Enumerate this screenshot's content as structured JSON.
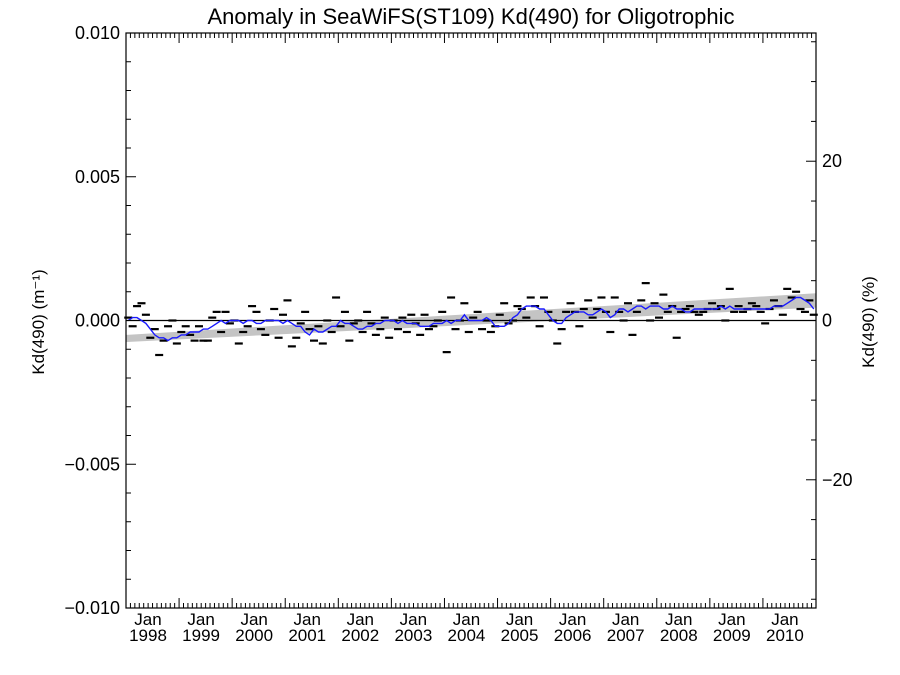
{
  "chart_data": {
    "type": "line",
    "title": "Anomaly in SeaWiFS(ST109) Kd(490) for Oligotrophic",
    "ylabel_left": "Kd(490) (m⁻¹)",
    "ylabel_right": "Kd(490) (%)",
    "xlabel": "",
    "x_range": [
      1998.0,
      2011.0
    ],
    "ylim_left": [
      -0.01,
      0.01
    ],
    "ylim_right": [
      -36.1,
      36.1
    ],
    "yticks_left": [
      "0.010",
      "0.005",
      "0.000",
      "−0.005",
      "−0.010"
    ],
    "yticks_left_values": [
      0.01,
      0.005,
      0.0,
      -0.005,
      -0.01
    ],
    "yticks_right": [
      "20",
      "0",
      "−20"
    ],
    "yticks_right_values": [
      20,
      0,
      -20
    ],
    "xticks": [
      {
        "month": "Jan",
        "year": "1998",
        "x": 1998.0
      },
      {
        "month": "Jan",
        "year": "1999",
        "x": 1999.0
      },
      {
        "month": "Jan",
        "year": "2000",
        "x": 2000.0
      },
      {
        "month": "Jan",
        "year": "2001",
        "x": 2001.0
      },
      {
        "month": "Jan",
        "year": "2002",
        "x": 2002.0
      },
      {
        "month": "Jan",
        "year": "2003",
        "x": 2003.0
      },
      {
        "month": "Jan",
        "year": "2004",
        "x": 2004.0
      },
      {
        "month": "Jan",
        "year": "2005",
        "x": 2005.0
      },
      {
        "month": "Jan",
        "year": "2006",
        "x": 2006.0
      },
      {
        "month": "Jan",
        "year": "2007",
        "x": 2007.0
      },
      {
        "month": "Jan",
        "year": "2008",
        "x": 2008.0
      },
      {
        "month": "Jan",
        "year": "2009",
        "x": 2009.0
      },
      {
        "month": "Jan",
        "year": "2010",
        "x": 2010.0
      }
    ],
    "zero_line": 0.0,
    "trend_band": {
      "x": [
        1998.0,
        2011.0
      ],
      "upper": [
        -0.0005,
        0.00095
      ],
      "lower": [
        -0.00075,
        0.00045
      ]
    },
    "series": [
      {
        "kind": "monthly_anomaly_dashes",
        "color": "#000000",
        "x": [
          1998.042,
          1998.125,
          1998.208,
          1998.292,
          1998.375,
          1998.458,
          1998.542,
          1998.625,
          1998.708,
          1998.792,
          1998.875,
          1998.958,
          1999.042,
          1999.125,
          1999.208,
          1999.292,
          1999.375,
          1999.458,
          1999.542,
          1999.625,
          1999.708,
          1999.792,
          1999.875,
          1999.958,
          2000.042,
          2000.125,
          2000.208,
          2000.292,
          2000.375,
          2000.458,
          2000.542,
          2000.625,
          2000.708,
          2000.792,
          2000.875,
          2000.958,
          2001.042,
          2001.125,
          2001.208,
          2001.292,
          2001.375,
          2001.458,
          2001.542,
          2001.625,
          2001.708,
          2001.792,
          2001.875,
          2001.958,
          2002.042,
          2002.125,
          2002.208,
          2002.292,
          2002.375,
          2002.458,
          2002.542,
          2002.625,
          2002.708,
          2002.792,
          2002.875,
          2002.958,
          2003.042,
          2003.125,
          2003.208,
          2003.292,
          2003.375,
          2003.458,
          2003.542,
          2003.625,
          2003.708,
          2003.792,
          2003.875,
          2003.958,
          2004.042,
          2004.125,
          2004.208,
          2004.292,
          2004.375,
          2004.458,
          2004.542,
          2004.625,
          2004.708,
          2004.792,
          2004.875,
          2004.958,
          2005.042,
          2005.125,
          2005.208,
          2005.292,
          2005.375,
          2005.458,
          2005.542,
          2005.625,
          2005.708,
          2005.792,
          2005.875,
          2005.958,
          2006.042,
          2006.125,
          2006.208,
          2006.292,
          2006.375,
          2006.458,
          2006.542,
          2006.625,
          2006.708,
          2006.792,
          2006.875,
          2006.958,
          2007.042,
          2007.125,
          2007.208,
          2007.292,
          2007.375,
          2007.458,
          2007.542,
          2007.625,
          2007.708,
          2007.792,
          2007.875,
          2007.958,
          2008.042,
          2008.125,
          2008.208,
          2008.292,
          2008.375,
          2008.458,
          2008.542,
          2008.625,
          2008.708,
          2008.792,
          2008.875,
          2008.958,
          2009.042,
          2009.125,
          2009.208,
          2009.292,
          2009.375,
          2009.458,
          2009.542,
          2009.625,
          2009.708,
          2009.792,
          2009.875,
          2009.958,
          2010.042,
          2010.125,
          2010.208,
          2010.292,
          2010.375,
          2010.458,
          2010.542,
          2010.625,
          2010.708,
          2010.792,
          2010.875,
          2010.958
        ],
        "y": [
          0.0001,
          -0.0002,
          0.0005,
          0.0006,
          0.0002,
          -0.0006,
          -0.0003,
          -0.0012,
          -0.0007,
          -0.0002,
          0.0,
          -0.0008,
          -0.0004,
          -0.0002,
          -0.0005,
          -0.0007,
          -0.0002,
          -0.0007,
          -0.0007,
          0.0001,
          0.0003,
          -0.0004,
          0.0003,
          -0.0001,
          0.0,
          -0.0008,
          -0.0004,
          -0.0002,
          0.0005,
          0.0003,
          -0.0003,
          -0.0005,
          0.0,
          0.0004,
          -0.0006,
          0.0002,
          0.0007,
          -0.0009,
          -0.0006,
          -0.0001,
          0.0003,
          -0.0003,
          -0.0007,
          -0.0002,
          -0.0008,
          0.0,
          -0.0004,
          0.0008,
          -0.0002,
          0.0003,
          -0.0007,
          -0.0001,
          0.0,
          -0.0004,
          0.0003,
          -0.0001,
          -0.0005,
          -0.0003,
          0.0001,
          -0.0006,
          0.0,
          -0.0003,
          0.0001,
          -0.0004,
          0.0002,
          -0.0001,
          -0.0005,
          0.0002,
          -0.0003,
          -0.0002,
          0.0,
          0.0003,
          -0.0011,
          0.0008,
          -0.0003,
          0.0,
          0.0006,
          -0.0004,
          0.0001,
          0.0003,
          -0.0003,
          0.0,
          -0.0004,
          -0.0002,
          0.0002,
          0.0006,
          -0.0001,
          0.0,
          0.0005,
          0.0004,
          0.0001,
          0.0008,
          0.0005,
          -0.0002,
          0.0008,
          0.0003,
          0.0,
          -0.0008,
          -0.0003,
          0.0003,
          0.0006,
          0.0003,
          -0.0002,
          0.0004,
          0.0007,
          0.0001,
          0.0004,
          0.0008,
          0.0003,
          -0.0004,
          0.0008,
          0.0003,
          0.0,
          0.0006,
          -0.0005,
          0.0003,
          0.0007,
          0.0013,
          0.0,
          0.0006,
          0.0001,
          0.0009,
          0.0003,
          0.0005,
          -0.0006,
          0.0003,
          0.0004,
          0.0005,
          0.0003,
          0.0002,
          0.0003,
          0.0004,
          0.0006,
          0.0004,
          0.0005,
          0.0,
          0.0011,
          0.0003,
          0.0005,
          0.0003,
          0.0004,
          0.0006,
          0.0005,
          0.0003,
          -0.0001,
          0.0004,
          0.0007,
          0.0005,
          0.0002,
          0.0011,
          0.0008,
          0.001,
          0.0004,
          0.0003,
          0.0007,
          0.0002
        ]
      },
      {
        "kind": "running_mean",
        "color": "#1a1aff",
        "x": [
          1998.042,
          1998.125,
          1998.208,
          1998.292,
          1998.375,
          1998.458,
          1998.542,
          1998.625,
          1998.708,
          1998.792,
          1998.875,
          1998.958,
          1999.042,
          1999.125,
          1999.208,
          1999.292,
          1999.375,
          1999.458,
          1999.542,
          1999.625,
          1999.708,
          1999.792,
          1999.875,
          1999.958,
          2000.042,
          2000.125,
          2000.208,
          2000.292,
          2000.375,
          2000.458,
          2000.542,
          2000.625,
          2000.708,
          2000.792,
          2000.875,
          2000.958,
          2001.042,
          2001.125,
          2001.208,
          2001.292,
          2001.375,
          2001.458,
          2001.542,
          2001.625,
          2001.708,
          2001.792,
          2001.875,
          2001.958,
          2002.042,
          2002.125,
          2002.208,
          2002.292,
          2002.375,
          2002.458,
          2002.542,
          2002.625,
          2002.708,
          2002.792,
          2002.875,
          2002.958,
          2003.042,
          2003.125,
          2003.208,
          2003.292,
          2003.375,
          2003.458,
          2003.542,
          2003.625,
          2003.708,
          2003.792,
          2003.875,
          2003.958,
          2004.042,
          2004.125,
          2004.208,
          2004.292,
          2004.375,
          2004.458,
          2004.542,
          2004.625,
          2004.708,
          2004.792,
          2004.875,
          2004.958,
          2005.042,
          2005.125,
          2005.208,
          2005.292,
          2005.375,
          2005.458,
          2005.542,
          2005.625,
          2005.708,
          2005.792,
          2005.875,
          2005.958,
          2006.042,
          2006.125,
          2006.208,
          2006.292,
          2006.375,
          2006.458,
          2006.542,
          2006.625,
          2006.708,
          2006.792,
          2006.875,
          2006.958,
          2007.042,
          2007.125,
          2007.208,
          2007.292,
          2007.375,
          2007.458,
          2007.542,
          2007.625,
          2007.708,
          2007.792,
          2007.875,
          2007.958,
          2008.042,
          2008.125,
          2008.208,
          2008.292,
          2008.375,
          2008.458,
          2008.542,
          2008.625,
          2008.708,
          2008.792,
          2008.875,
          2008.958,
          2009.042,
          2009.125,
          2009.208,
          2009.292,
          2009.375,
          2009.458,
          2009.542,
          2009.625,
          2009.708,
          2009.792,
          2009.875,
          2009.958,
          2010.042,
          2010.125,
          2010.208,
          2010.292,
          2010.375,
          2010.458,
          2010.542,
          2010.625,
          2010.708,
          2010.792,
          2010.875,
          2010.958
        ],
        "y": [
          0.0,
          0.0001,
          0.0001,
          0.0,
          -0.0001,
          -0.0003,
          -0.0005,
          -0.0006,
          -0.0006,
          -0.0007,
          -0.0006,
          -0.0006,
          -0.0005,
          -0.0005,
          -0.0004,
          -0.0004,
          -0.0004,
          -0.0003,
          -0.0003,
          -0.0002,
          -0.0001,
          0.0,
          -0.0001,
          0.0,
          0.0,
          0.0,
          -0.0001,
          0.0,
          0.0,
          -0.0001,
          -0.0001,
          0.0,
          0.0,
          0.0,
          0.0,
          -0.0001,
          0.0,
          -0.0001,
          -0.0002,
          -0.0002,
          -0.0004,
          -0.0005,
          -0.0003,
          -0.0004,
          -0.0004,
          -0.0003,
          -0.0002,
          -0.0002,
          0.0,
          -0.0001,
          -0.0001,
          -0.0002,
          -0.0003,
          -0.0003,
          -0.0002,
          -0.0002,
          -0.0001,
          -0.0001,
          0.0,
          0.0,
          0.0,
          -0.0001,
          0.0,
          -0.0001,
          -0.0001,
          -0.0001,
          -0.0002,
          -0.0002,
          -0.0002,
          -0.0001,
          -0.0001,
          -0.0001,
          0.0,
          -0.0001,
          0.0,
          0.0,
          0.0002,
          0.0,
          0.0,
          0.0,
          0.0,
          0.0001,
          0.0,
          -0.0002,
          -0.0002,
          -0.0002,
          -0.0001,
          0.0001,
          0.0002,
          0.0004,
          0.0005,
          0.0005,
          0.0005,
          0.0004,
          0.0004,
          0.0002,
          0.0,
          -0.0001,
          -0.0001,
          0.0001,
          0.0002,
          0.0003,
          0.0003,
          0.0003,
          0.0002,
          0.0002,
          0.0003,
          0.0004,
          0.0003,
          0.0001,
          0.0002,
          0.0004,
          0.0004,
          0.0003,
          0.0004,
          0.0005,
          0.0005,
          0.0004,
          0.0005,
          0.0005,
          0.0005,
          0.0004,
          0.0004,
          0.0005,
          0.0004,
          0.0004,
          0.0003,
          0.0003,
          0.0004,
          0.0004,
          0.0004,
          0.0004,
          0.0004,
          0.0004,
          0.0005,
          0.0004,
          0.0005,
          0.0004,
          0.0004,
          0.0004,
          0.0004,
          0.0004,
          0.0004,
          0.0004,
          0.0004,
          0.0004,
          0.0005,
          0.0005,
          0.0005,
          0.0006,
          0.0007,
          0.0008,
          0.0008,
          0.0007,
          0.0006,
          0.0004
        ]
      }
    ],
    "grid": false,
    "legend": "none"
  }
}
